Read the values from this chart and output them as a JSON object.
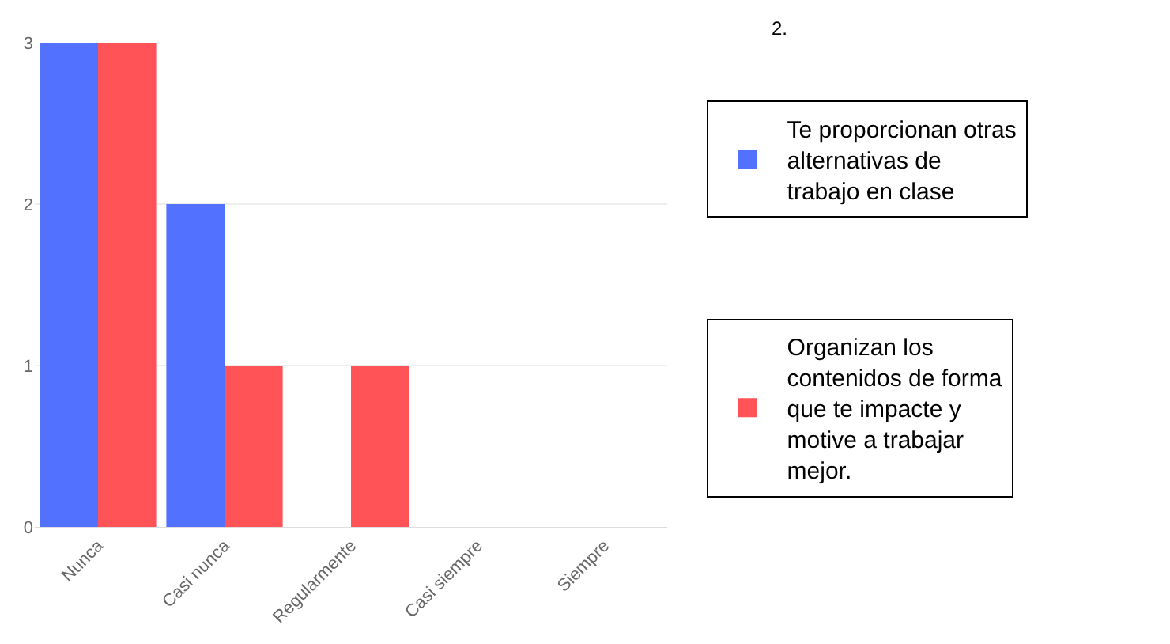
{
  "chart_data": {
    "type": "bar",
    "title": "2.",
    "categories": [
      "Nunca",
      "Casi nunca",
      "Regularmente",
      "Casi siempre",
      "Siempre"
    ],
    "series": [
      {
        "name": "Te proporcionan otras alternativas de trabajo en clase",
        "color": "#5271ff",
        "values": [
          3,
          2,
          0,
          0,
          0
        ]
      },
      {
        "name": "Organizan los contenidos de forma que te impacte y motive a trabajar mejor.",
        "color": "#ff5357",
        "values": [
          3,
          1,
          1,
          0,
          0
        ]
      }
    ],
    "ylim": [
      0,
      3
    ],
    "yticks": [
      0,
      1,
      2,
      3
    ],
    "grid": "y",
    "legend": "right"
  }
}
